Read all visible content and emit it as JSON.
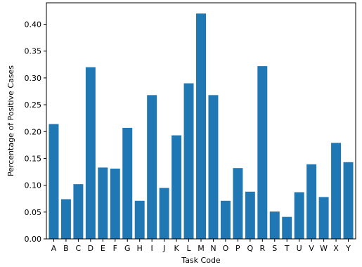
{
  "chart_data": {
    "type": "bar",
    "title": "",
    "xlabel": "Task Code",
    "ylabel": "Percentage of Positive Cases",
    "categories": [
      "A",
      "B",
      "C",
      "D",
      "E",
      "F",
      "G",
      "H",
      "I",
      "J",
      "K",
      "L",
      "M",
      "N",
      "O",
      "P",
      "Q",
      "R",
      "S",
      "T",
      "U",
      "V",
      "W",
      "X",
      "Y"
    ],
    "values": [
      0.214,
      0.074,
      0.102,
      0.32,
      0.133,
      0.131,
      0.207,
      0.071,
      0.268,
      0.095,
      0.193,
      0.29,
      0.42,
      0.268,
      0.071,
      0.132,
      0.088,
      0.322,
      0.051,
      0.041,
      0.087,
      0.139,
      0.078,
      0.179,
      0.143
    ],
    "ylim": [
      0,
      0.44
    ],
    "yticks": [
      "0.00",
      "0.05",
      "0.10",
      "0.15",
      "0.20",
      "0.25",
      "0.30",
      "0.35",
      "0.40"
    ],
    "bar_color": "#1f77b4",
    "grid": false,
    "legend": "none"
  }
}
